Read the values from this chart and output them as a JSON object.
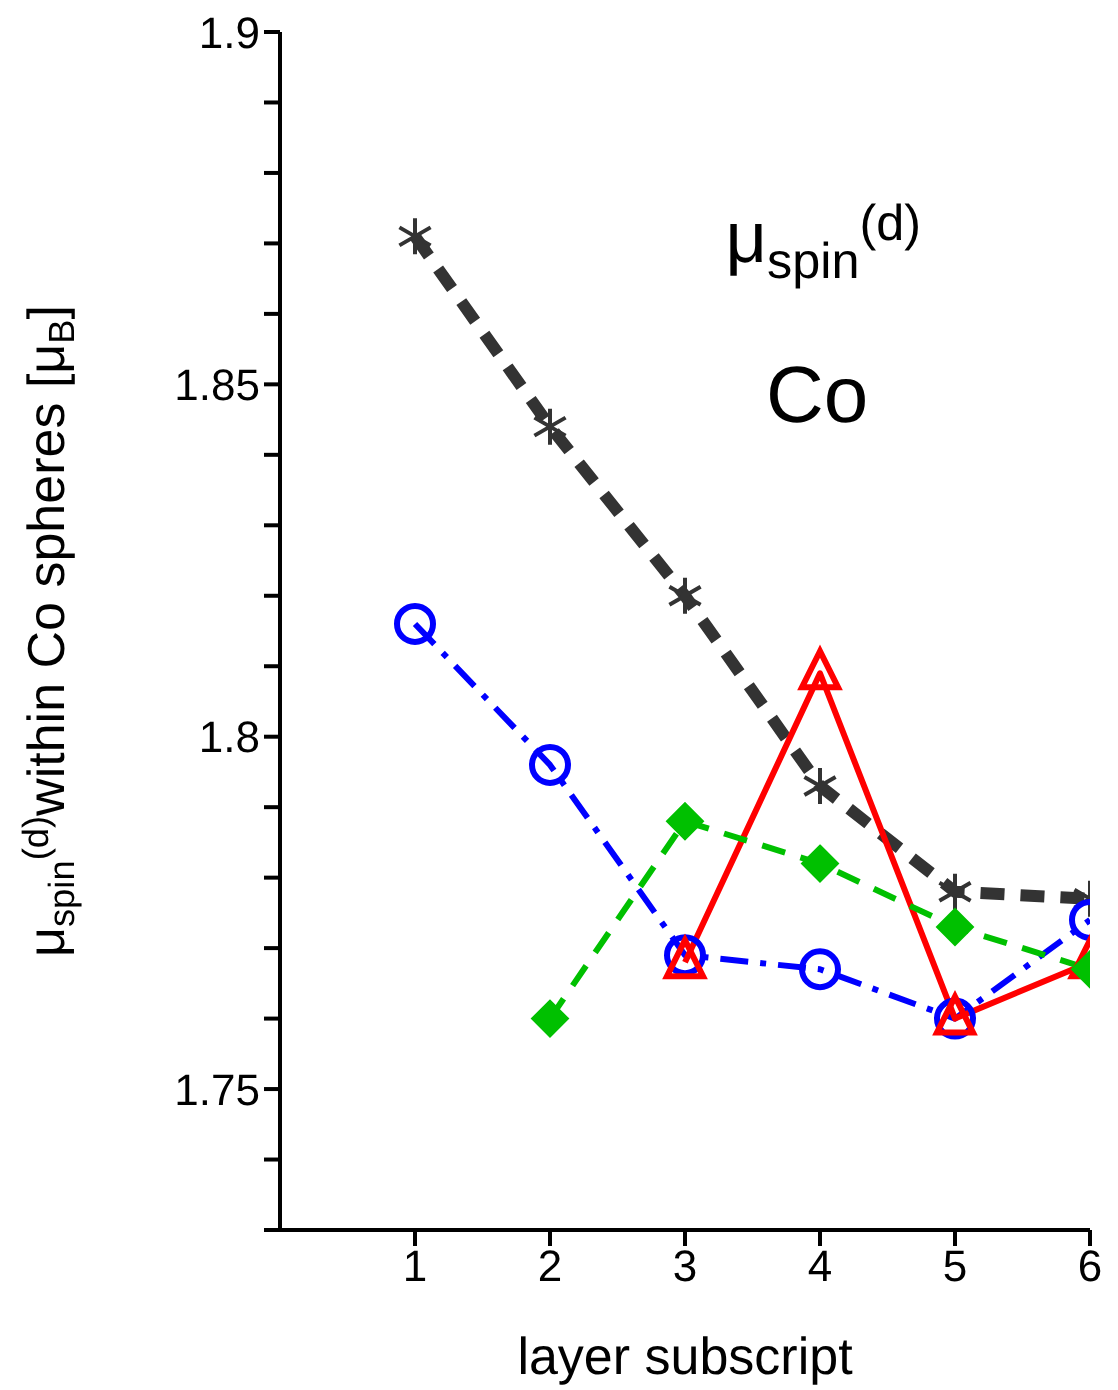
{
  "chart_data": {
    "type": "line",
    "xlabel": "layer subscript",
    "ylabel": "μ$_{spin}$$^{(d)}$within Co spheres  [μ$_{B}$]",
    "annotations": [
      "μ$_{spin}$$^{(d)}$",
      "Co"
    ],
    "x": [
      1,
      2,
      3,
      4,
      5,
      6
    ],
    "series": [
      {
        "color": "#333333",
        "marker": "cross",
        "line_style": "dashed",
        "values": [
          1.871,
          1.844,
          1.82,
          1.793,
          1.778,
          1.777
        ]
      },
      {
        "color": "#0000ff",
        "marker": "circle",
        "line_style": "dashdot",
        "values": [
          1.816,
          1.796,
          1.769,
          1.767,
          1.76,
          1.774
        ]
      },
      {
        "color": "#ff0000",
        "marker": "triangle",
        "line_style": "solid",
        "values": [
          null,
          null,
          1.768,
          1.809,
          1.76,
          1.768
        ]
      },
      {
        "color": "#00c000",
        "marker": "diamond",
        "line_style": "dashed",
        "values": [
          null,
          1.76,
          1.788,
          1.782,
          1.773,
          1.767
        ]
      }
    ],
    "xlim": [
      0,
      6
    ],
    "xticks": [
      1,
      2,
      3,
      4,
      5,
      6
    ],
    "ylim": [
      1.73,
      1.9
    ],
    "yticks": [
      {
        "value": 1.73,
        "label": null
      },
      {
        "value": 1.74,
        "label": null
      },
      1.75,
      {
        "value": 1.76,
        "label": null
      },
      {
        "value": 1.77,
        "label": null
      },
      {
        "value": 1.78,
        "label": null
      },
      {
        "value": 1.79,
        "label": null
      },
      1.8,
      {
        "value": 1.81,
        "label": null
      },
      {
        "value": 1.82,
        "label": null
      },
      {
        "value": 1.83,
        "label": null
      },
      {
        "value": 1.84,
        "label": null
      },
      1.85,
      {
        "value": 1.86,
        "label": null
      },
      {
        "value": 1.87,
        "label": null
      },
      {
        "value": 1.88,
        "label": null
      },
      {
        "value": 1.89,
        "label": null
      },
      1.9
    ]
  }
}
